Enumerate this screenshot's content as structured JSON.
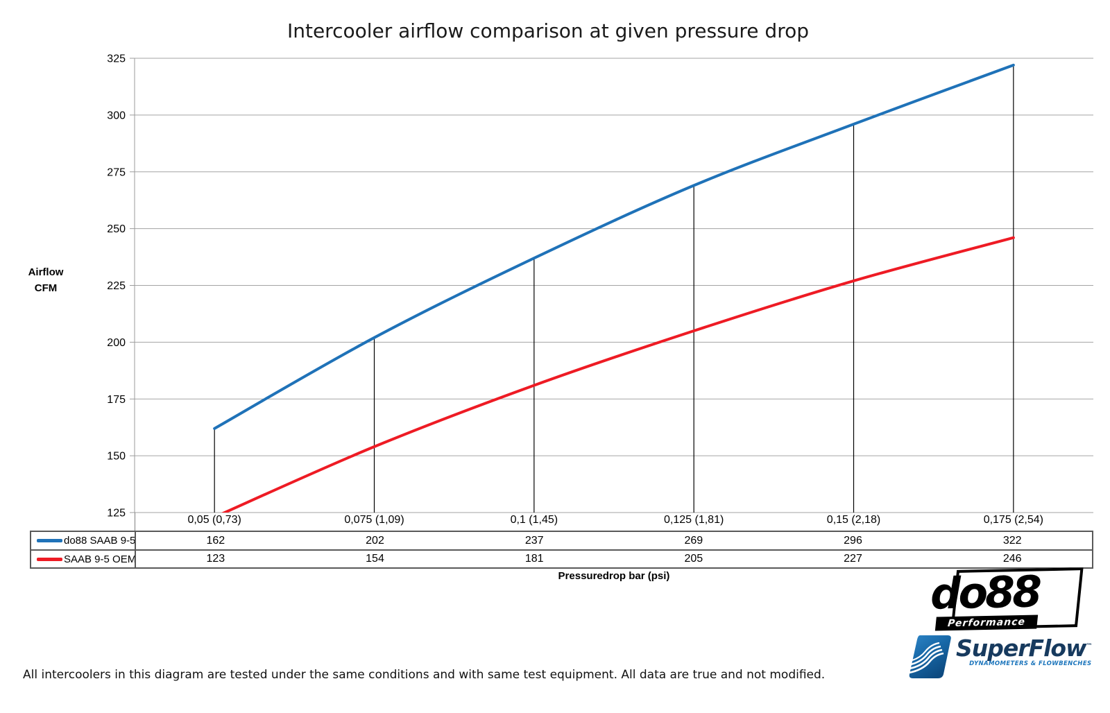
{
  "title": "Intercooler airflow comparison at given pressure drop",
  "chart_data": {
    "type": "line",
    "title": "Intercooler airflow comparison at given pressure drop",
    "categories": [
      "0,05 (0,73)",
      "0,075 (1,09)",
      "0,1 (1,45)",
      "0,125 (1,81)",
      "0,15 (2,18)",
      "0,175 (2,54)"
    ],
    "series": [
      {
        "name": "do88 SAAB 9-5",
        "color": "#1F72B8",
        "values": [
          162,
          202,
          237,
          269,
          296,
          322
        ]
      },
      {
        "name": "SAAB 9-5 OEM",
        "color": "#EE1B24",
        "values": [
          123,
          154,
          181,
          205,
          227,
          246
        ]
      }
    ],
    "xlabel": "Pressuredrop bar (psi)",
    "ylabel": "Airflow CFM",
    "ylabel_lines": [
      "Airflow",
      "CFM"
    ],
    "ylim": [
      125,
      325
    ],
    "yticks": [
      125,
      150,
      175,
      200,
      225,
      250,
      275,
      300,
      325
    ],
    "grid": "horizontal-only",
    "legend_position": "table-rows-left",
    "gridline_color": "#A3A3A3",
    "axis_color": "#9B9B9B",
    "dropline_color": "#000000",
    "line_width": 4
  },
  "footer": {
    "note": "All intercoolers in this diagram are tested under the same conditions and with same test equipment. All data are true and not modified."
  },
  "logos": {
    "do88": {
      "text": "do88",
      "subtext": "Performance"
    },
    "superflow": {
      "text": "SuperFlow",
      "tm": "™",
      "subtext": "DYNAMOMETERS & FLOWBENCHES"
    }
  }
}
